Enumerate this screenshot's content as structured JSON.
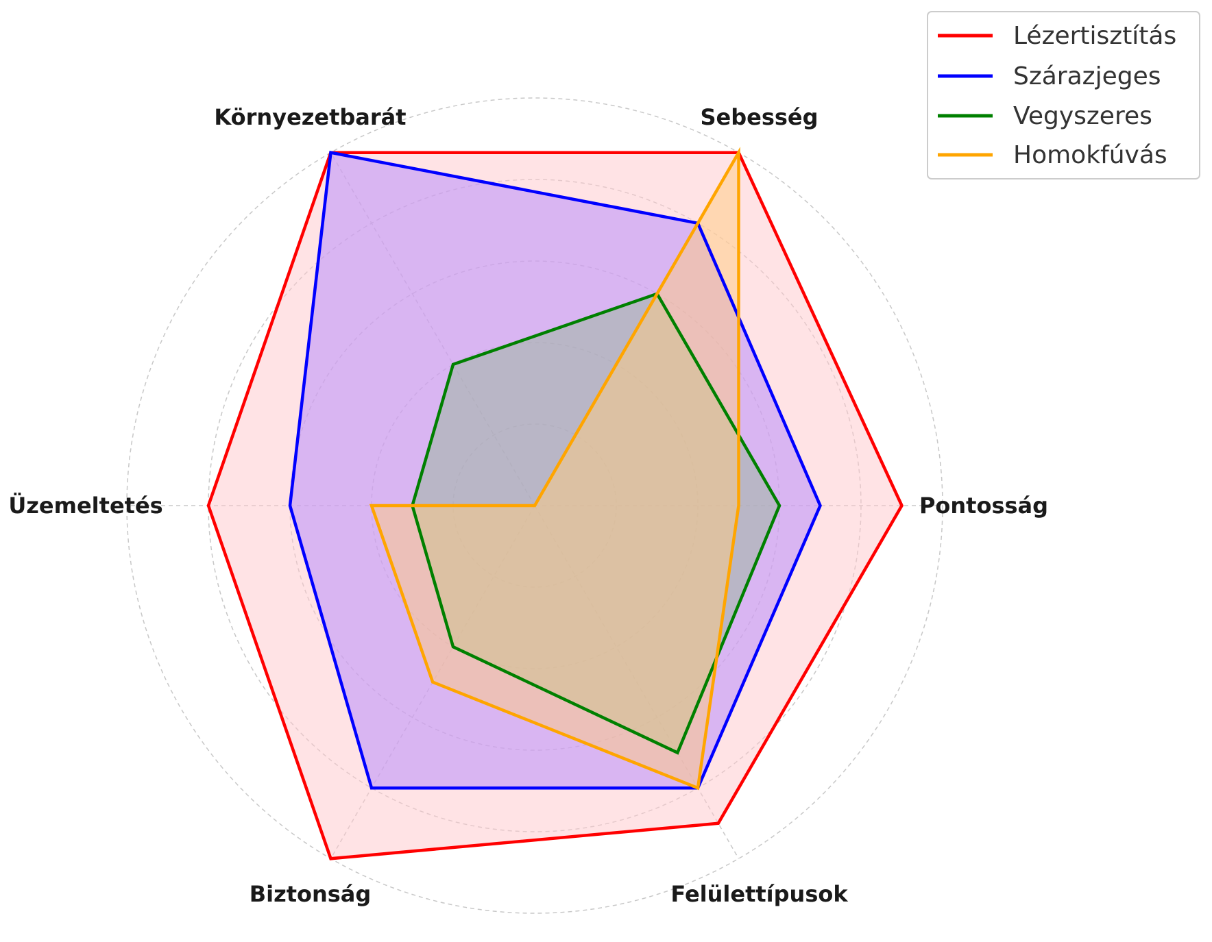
{
  "chart_data": {
    "type": "radar",
    "axes": [
      "Pontosság",
      "Sebesség",
      "Környezetbarát",
      "Üzemeltetés",
      "Biztonság",
      "Felülettípusok"
    ],
    "rmax": 5,
    "rings": [
      1,
      2,
      3,
      4,
      5
    ],
    "grid": true,
    "legend_position": "top-right",
    "series": [
      {
        "name": "Lézertisztítás",
        "values": [
          4.5,
          5,
          5,
          4,
          5,
          4.5
        ],
        "color": "#ff0000",
        "fill": "#ffc8cc"
      },
      {
        "name": "Szárazjeges",
        "values": [
          3.5,
          4,
          5,
          3,
          4,
          4
        ],
        "color": "#0000ff",
        "fill": "#b388ff"
      },
      {
        "name": "Vegyszeres",
        "values": [
          3,
          3,
          2,
          1.5,
          2,
          3.5
        ],
        "color": "#008000",
        "fill": "#9ab89a"
      },
      {
        "name": "Homokfúvás",
        "values": [
          2.5,
          5,
          0,
          2,
          2.5,
          4
        ],
        "color": "#ffa500",
        "fill": "#ffcc80"
      }
    ]
  }
}
